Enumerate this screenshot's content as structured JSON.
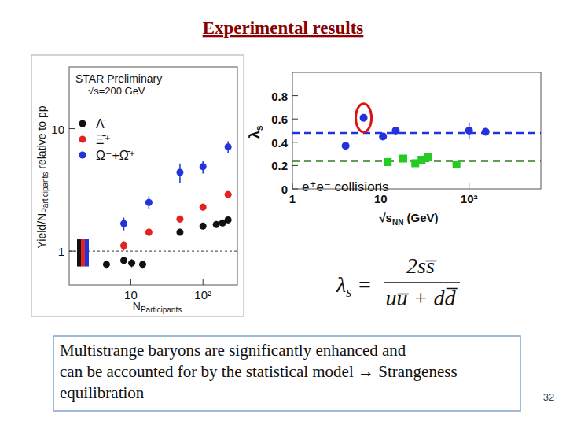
{
  "slide": {
    "title": "Experimental results",
    "caption": [
      "Multistrange baryons are significantly enhanced and",
      "can be accounted for by the statistical model → Strangeness",
      "equilibration"
    ],
    "page": "32",
    "formula": {
      "lhs": "λ",
      "lhs_sub": "s",
      "numerator": "2ss̅",
      "denominator": "uu̅ + dd̅"
    }
  },
  "chart_data": [
    {
      "type": "scatter",
      "title": "STAR Preliminary",
      "subtitle": "√s=200 GeV",
      "y_label": "Yield/N",
      "y_label_sub": "Participants",
      "y_label_suffix": " relative to pp",
      "x_label": "N",
      "x_label_sub": "Participants",
      "log": true,
      "legend": "upper left",
      "xlim": [
        1.4,
        300
      ],
      "xticks": [
        10,
        {
          "value": 100,
          "label": "10²"
        }
      ],
      "ylim": [
        0.53,
        32
      ],
      "yticks": [
        1,
        10
      ],
      "reference_line": 1,
      "series": [
        {
          "name": "Λ̄",
          "color": "#111111",
          "marker": "circle",
          "x": [
            4.6,
            8.0,
            10.3,
            14.6,
            48,
            100,
            153,
            187,
            223
          ],
          "values": [
            0.78,
            0.84,
            0.8,
            0.78,
            1.43,
            1.6,
            1.65,
            1.7,
            1.8
          ],
          "errors": [
            0.06,
            0.06,
            0.06,
            0.06,
            0.08,
            0.08,
            0.08,
            0.08,
            0.08
          ],
          "norm_error": 0.25
        },
        {
          "name": "Ξ̄⁺",
          "color": "#e52222",
          "marker": "circle",
          "x": [
            8.0,
            17.8,
            48,
            100,
            223
          ],
          "values": [
            1.11,
            1.43,
            1.83,
            2.29,
            2.9
          ],
          "errors": [
            0.1,
            0.1,
            0.12,
            0.15,
            0.2
          ],
          "norm_error": 0.25
        },
        {
          "name": "Ω⁻+Ω̄⁺",
          "color": "#2233dd",
          "marker": "circle",
          "x": [
            8.0,
            17.8,
            48,
            100,
            223
          ],
          "values": [
            1.68,
            2.5,
            4.4,
            4.9,
            7.1
          ],
          "errors": [
            0.2,
            0.3,
            0.8,
            0.6,
            0.8
          ],
          "norm_error": 0.25
        }
      ]
    },
    {
      "type": "scatter",
      "y_label": "λ",
      "y_label_sub": "s",
      "x_label": "√s",
      "x_label_sub": "NN",
      "x_label_suffix": " (GeV)",
      "log": "x",
      "xlim": [
        1,
        650
      ],
      "xticks": [
        1,
        10,
        {
          "value": 100,
          "label": "10²"
        }
      ],
      "ylim": [
        0,
        1
      ],
      "yticks": [
        0,
        0.2,
        0.4,
        0.6,
        0.8
      ],
      "annotation": "e⁺e⁻ collisions",
      "highlighted_point": 1,
      "reference_lines": [
        {
          "value": 0.48,
          "color": "#2233dd"
        },
        {
          "value": 0.24,
          "color": "#2e7d1e"
        }
      ],
      "series": [
        {
          "color": "#2233dd",
          "marker": "circle",
          "x": [
            4.0,
            6.4,
            10.6,
            14.8,
            100,
            154
          ],
          "values": [
            0.37,
            0.61,
            0.45,
            0.5,
            0.5,
            0.49
          ],
          "errors": [
            0.03,
            0.03,
            0.02,
            0.02,
            0.07,
            0.03
          ]
        },
        {
          "color": "#22cc22",
          "marker": "square",
          "x": [
            12,
            18,
            24.6,
            29,
            34,
            72
          ],
          "values": [
            0.23,
            0.26,
            0.22,
            0.25,
            0.27,
            0.21
          ],
          "errors": [
            0.01,
            0.01,
            0.01,
            0.01,
            0.01,
            0.01
          ]
        }
      ]
    }
  ]
}
